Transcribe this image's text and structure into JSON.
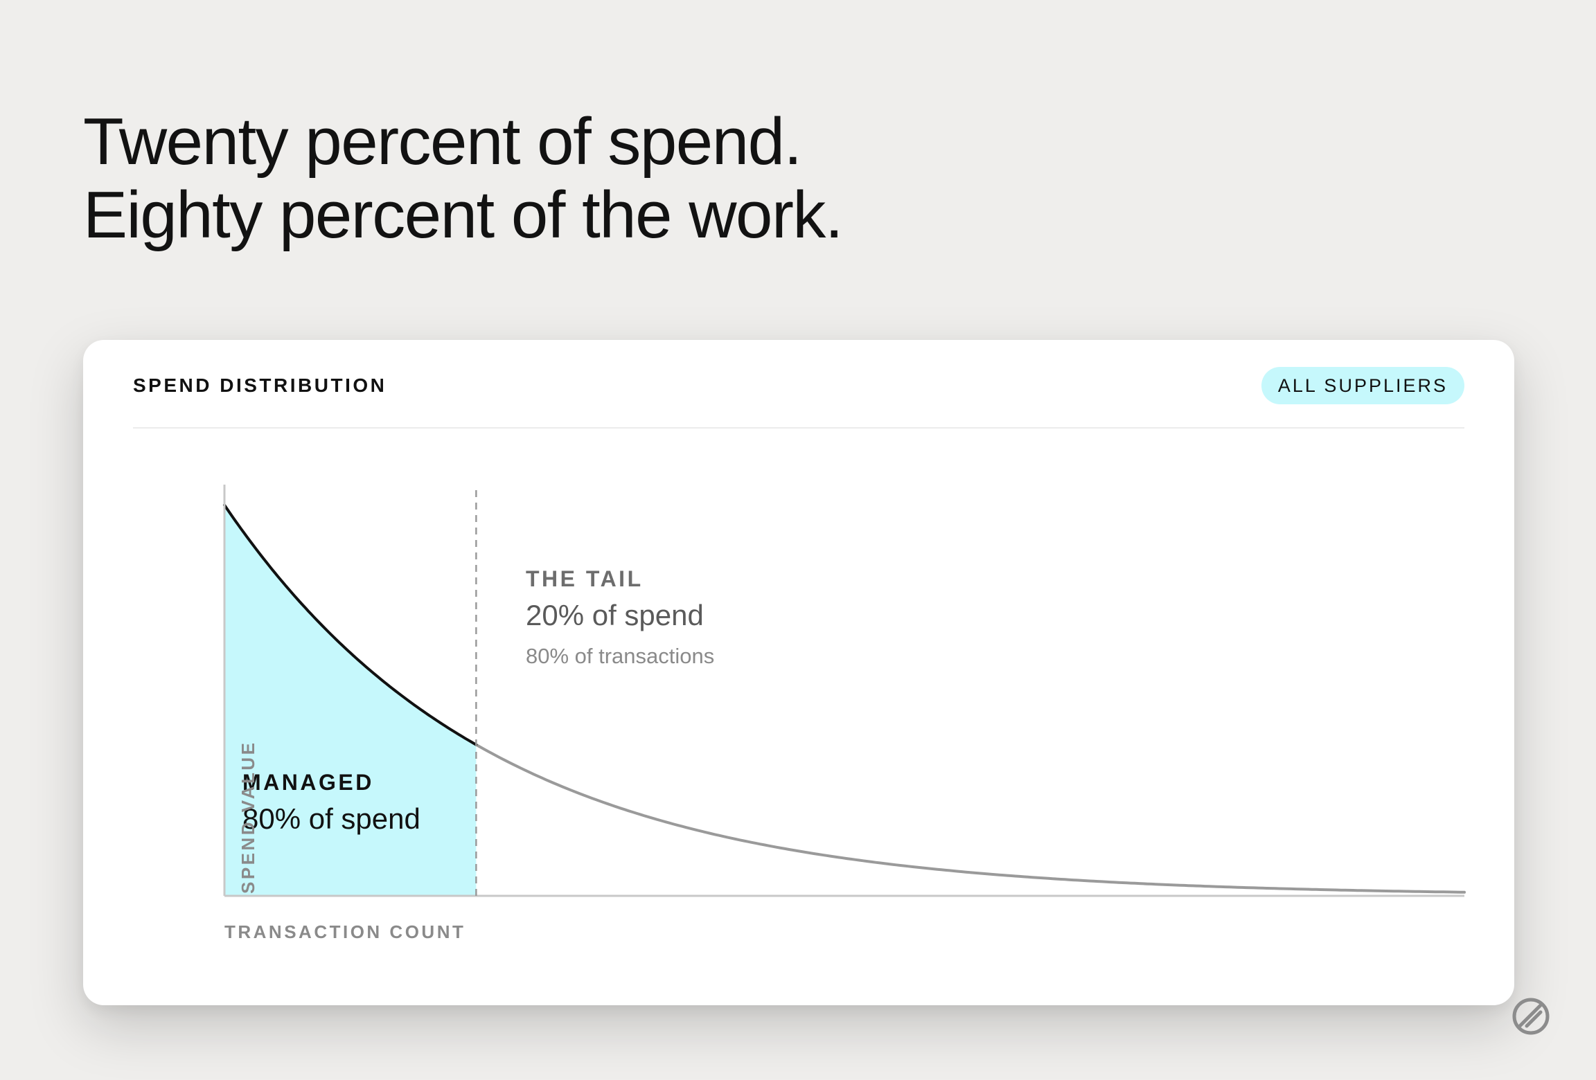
{
  "headline": {
    "line1": "Twenty percent of spend.",
    "line2": "Eighty percent of the work."
  },
  "card": {
    "title": "SPEND DISTRIBUTION",
    "filter_badge": "ALL SUPPLIERS"
  },
  "chart_data": {
    "type": "area",
    "title": "SPEND DISTRIBUTION",
    "xlabel": "TRANSACTION COUNT",
    "ylabel": "SPEND VALUE",
    "xlim": [
      0,
      100
    ],
    "ylim": [
      0,
      100
    ],
    "grid": false,
    "curve": {
      "form": "exponential-decay",
      "start_value": 97,
      "decay_rate": 0.0468,
      "x": [
        0,
        5,
        10,
        15,
        20,
        30,
        40,
        50,
        60,
        80,
        100
      ],
      "y": [
        97,
        76.6,
        60.5,
        48.0,
        37.9,
        23.8,
        14.9,
        9.3,
        5.9,
        2.3,
        0.9
      ]
    },
    "split_x": 20.3,
    "regions": [
      {
        "id": "managed",
        "label": "MANAGED",
        "value": "80% of spend",
        "fill": "#c6f8fc"
      },
      {
        "id": "tail",
        "label": "THE TAIL",
        "value": "20% of spend",
        "note": "80% of transactions"
      }
    ],
    "colors": {
      "head_line": "#111111",
      "tail_line": "#9a9a9a",
      "axis": "#c8c8c8",
      "divider": "#9a9a9a"
    }
  },
  "icons": {
    "brand_logo": "slashed-circle-logo-icon"
  }
}
